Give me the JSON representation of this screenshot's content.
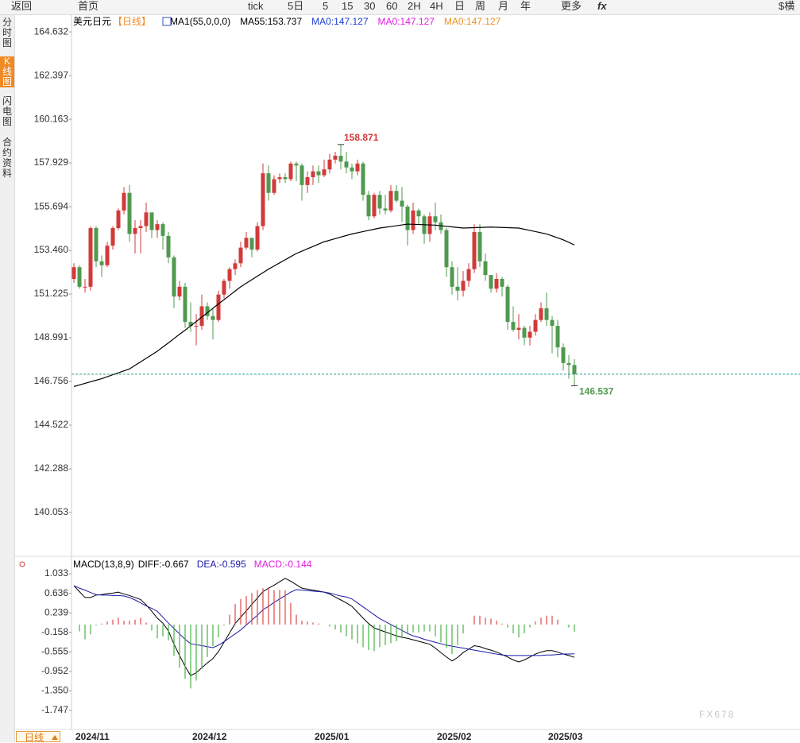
{
  "toolbar": [
    "返回",
    "首页",
    "tick",
    "5日",
    "5",
    "15",
    "30",
    "60",
    "2H",
    "4H",
    "日",
    "周",
    "月",
    "年",
    "更多",
    "fx",
    "$横"
  ],
  "sidebar": [
    "分时图",
    "K线图",
    "闪电图",
    "合约资料"
  ],
  "period_selector": "日线",
  "watermark": "FX678",
  "chart_data": [
    {
      "type": "candlestick",
      "symbol": "美元日元",
      "period": "【日线】",
      "indicator_labels": [
        {
          "text": "MA1(55,0,0,0)",
          "color": "#000000"
        },
        {
          "text": "MA55:153.737",
          "color": "#000000"
        },
        {
          "text": "MA0:147.127",
          "color": "#1a3fd0"
        },
        {
          "text": "MA0:147.127",
          "color": "#e020e0"
        },
        {
          "text": "MA0:147.127",
          "color": "#f09020"
        }
      ],
      "categories": [
        "2024/11",
        null,
        null,
        null,
        null,
        null,
        null,
        null,
        null,
        null,
        null,
        null,
        null,
        null,
        null,
        null,
        null,
        null,
        null,
        null,
        null,
        "2024/12",
        null,
        null,
        null,
        null,
        null,
        null,
        null,
        null,
        null,
        null,
        null,
        null,
        null,
        null,
        null,
        null,
        null,
        null,
        null,
        null,
        null,
        "2025/01",
        null,
        null,
        null,
        null,
        null,
        null,
        null,
        null,
        null,
        null,
        null,
        null,
        null,
        null,
        null,
        null,
        null,
        null,
        null,
        null,
        null,
        "2025/02",
        null,
        null,
        null,
        null,
        null,
        null,
        null,
        null,
        null,
        null,
        null,
        null,
        null,
        null,
        null,
        null,
        null,
        null,
        null,
        "2025/03",
        null,
        null,
        null,
        null,
        null
      ],
      "open": [
        152.0,
        152.6,
        151.6,
        151.6,
        154.6,
        152.9,
        152.7,
        153.7,
        154.6,
        155.5,
        156.4,
        154.3,
        154.6,
        154.7,
        155.4,
        154.5,
        154.8,
        154.2,
        153.1,
        151.1,
        151.6,
        149.8,
        149.6,
        149.6,
        150.6,
        150.1,
        149.9,
        151.2,
        151.9,
        152.5,
        152.8,
        153.6,
        154.1,
        153.5,
        154.7,
        157.4,
        156.4,
        157.1,
        157.2,
        157.1,
        157.9,
        157.8,
        156.8,
        157.2,
        157.5,
        157.3,
        157.6,
        158.1,
        158.3,
        158.0,
        157.7,
        157.5,
        157.9,
        156.3,
        155.2,
        156.3,
        155.6,
        155.5,
        156.5,
        156.0,
        155.7,
        154.5,
        155.5,
        155.2,
        154.3,
        155.2,
        154.9,
        154.5,
        152.6,
        151.6,
        151.4,
        151.9,
        152.5,
        154.4,
        152.9,
        152.2,
        151.5,
        152.0,
        151.6,
        149.8,
        149.4,
        149.5,
        149.0,
        149.3,
        149.9,
        150.5,
        149.9,
        149.6,
        148.5,
        147.7,
        147.6
      ],
      "high": [
        152.8,
        152.7,
        152.0,
        154.7,
        154.7,
        153.2,
        153.9,
        154.7,
        155.6,
        156.7,
        156.8,
        155.0,
        155.0,
        155.9,
        155.4,
        155.0,
        154.9,
        154.4,
        153.2,
        151.9,
        151.8,
        150.8,
        150.2,
        151.2,
        150.8,
        150.5,
        151.4,
        152.0,
        152.6,
        153.0,
        153.9,
        154.4,
        154.1,
        154.9,
        157.9,
        157.8,
        157.3,
        157.4,
        157.4,
        158.0,
        158.0,
        157.9,
        157.5,
        157.8,
        157.8,
        158.1,
        158.4,
        158.5,
        158.871,
        158.5,
        157.9,
        158.1,
        158.0,
        156.5,
        156.4,
        156.5,
        156.3,
        156.8,
        156.8,
        156.7,
        155.8,
        155.9,
        155.6,
        155.3,
        155.4,
        155.9,
        155.3,
        154.6,
        152.9,
        152.6,
        152.4,
        152.8,
        154.8,
        154.8,
        153.3,
        152.2,
        152.3,
        152.1,
        151.7,
        150.6,
        150.2,
        149.6,
        149.6,
        150.2,
        150.8,
        151.3,
        150.1,
        149.9,
        148.7,
        148.1,
        147.9
      ],
      "low": [
        151.8,
        151.5,
        151.3,
        151.4,
        152.6,
        152.1,
        152.6,
        153.5,
        154.5,
        155.3,
        153.9,
        153.3,
        153.3,
        154.4,
        154.1,
        154.1,
        153.5,
        152.8,
        150.5,
        150.9,
        149.5,
        149.3,
        148.6,
        149.4,
        149.9,
        148.9,
        149.8,
        151.0,
        151.5,
        152.2,
        152.6,
        153.5,
        153.1,
        153.4,
        154.5,
        156.0,
        156.3,
        156.9,
        156.9,
        157.0,
        157.0,
        156.0,
        156.4,
        156.8,
        156.9,
        157.2,
        157.4,
        157.9,
        157.6,
        157.4,
        157.1,
        157.3,
        156.0,
        155.0,
        155.1,
        155.3,
        155.3,
        155.4,
        155.9,
        154.9,
        153.7,
        154.3,
        154.8,
        153.8,
        153.9,
        154.5,
        154.3,
        152.1,
        151.2,
        150.9,
        151.1,
        151.6,
        152.3,
        152.6,
        151.9,
        151.3,
        151.3,
        151.1,
        149.4,
        149.3,
        148.9,
        148.6,
        148.6,
        149.1,
        149.8,
        149.6,
        148.2,
        148.0,
        147.3,
        146.9,
        146.537
      ],
      "close": [
        152.6,
        151.6,
        151.6,
        154.6,
        152.9,
        152.7,
        153.7,
        154.6,
        155.5,
        156.4,
        154.3,
        154.6,
        154.7,
        155.4,
        154.5,
        154.8,
        154.2,
        153.1,
        151.1,
        151.6,
        149.8,
        149.6,
        149.6,
        150.6,
        150.1,
        149.9,
        151.2,
        151.9,
        152.5,
        152.8,
        153.6,
        154.1,
        153.5,
        154.7,
        157.4,
        156.4,
        157.1,
        157.2,
        157.1,
        157.9,
        157.8,
        156.8,
        157.2,
        157.5,
        157.3,
        157.6,
        158.1,
        158.3,
        158.0,
        157.7,
        157.5,
        157.9,
        156.3,
        155.2,
        156.3,
        155.6,
        155.5,
        156.5,
        156.0,
        155.7,
        154.5,
        155.5,
        155.2,
        154.3,
        155.2,
        154.9,
        154.5,
        152.6,
        151.6,
        151.4,
        151.9,
        152.5,
        154.4,
        152.9,
        152.2,
        151.5,
        152.0,
        151.6,
        149.8,
        149.4,
        149.5,
        149.0,
        149.3,
        149.9,
        150.5,
        149.9,
        149.6,
        148.5,
        147.7,
        147.6,
        147.127
      ],
      "ma": {
        "color": "#000000",
        "values": [
          146.5,
          146.58,
          146.66,
          146.74,
          146.82,
          146.9,
          147.0,
          147.1,
          147.2,
          147.3,
          147.4,
          147.58,
          147.76,
          147.94,
          148.12,
          148.3,
          148.52,
          148.73,
          148.95,
          149.17,
          149.38,
          149.6,
          149.82,
          150.05,
          150.27,
          150.5,
          150.72,
          150.94,
          151.16,
          151.38,
          151.6,
          151.78,
          151.96,
          152.14,
          152.32,
          152.5,
          152.66,
          152.82,
          152.98,
          153.14,
          153.3,
          153.42,
          153.54,
          153.66,
          153.78,
          153.9,
          153.98,
          154.06,
          154.14,
          154.22,
          154.3,
          154.36,
          154.42,
          154.48,
          154.54,
          154.6,
          154.64,
          154.68,
          154.72,
          154.76,
          154.8,
          154.79,
          154.78,
          154.77,
          154.76,
          154.75,
          154.72,
          154.69,
          154.66,
          154.63,
          154.6,
          154.61,
          154.62,
          154.63,
          154.64,
          154.65,
          154.64,
          154.63,
          154.62,
          154.61,
          154.6,
          154.54,
          154.48,
          154.42,
          154.36,
          154.3,
          154.2,
          154.1,
          154.0,
          153.87,
          153.737
        ]
      },
      "up_color": "#d23a3a",
      "down_color": "#4f9a4f",
      "last_line_color": "#2a9d8f",
      "high_label": 158.871,
      "low_label": 146.537,
      "ylim": [
        137.82,
        165.53
      ],
      "yticks": [
        164.632,
        162.397,
        160.163,
        157.929,
        155.694,
        {
          "value": 153.46,
          "label": "153.460"
        },
        151.225,
        148.991,
        146.756,
        144.522,
        142.288,
        140.053
      ]
    },
    {
      "type": "macd",
      "title": "MACD(13,8,9)",
      "series": [
        {
          "name": "DIFF:-0.667",
          "kind": "line",
          "color": "#000000",
          "values": [
            0.79,
            0.67,
            0.55,
            0.55,
            0.6,
            0.61,
            0.63,
            0.64,
            0.66,
            0.62,
            0.59,
            0.55,
            0.51,
            0.4,
            0.27,
            0.13,
            0.03,
            -0.13,
            -0.4,
            -0.63,
            -0.85,
            -1.04,
            -0.98,
            -0.88,
            -0.78,
            -0.69,
            -0.55,
            -0.36,
            -0.17,
            0.02,
            0.15,
            0.28,
            0.41,
            0.54,
            0.67,
            0.74,
            0.8,
            0.87,
            0.94,
            0.88,
            0.81,
            0.74,
            0.72,
            0.7,
            0.68,
            0.66,
            0.62,
            0.56,
            0.5,
            0.44,
            0.37,
            0.25,
            0.13,
            0.02,
            -0.07,
            -0.11,
            -0.15,
            -0.19,
            -0.23,
            -0.26,
            -0.28,
            -0.31,
            -0.34,
            -0.37,
            -0.4,
            -0.48,
            -0.57,
            -0.66,
            -0.74,
            -0.67,
            -0.57,
            -0.5,
            -0.43,
            -0.45,
            -0.49,
            -0.52,
            -0.56,
            -0.61,
            -0.66,
            -0.72,
            -0.76,
            -0.72,
            -0.66,
            -0.6,
            -0.56,
            -0.53,
            -0.53,
            -0.56,
            -0.6,
            -0.63,
            -0.667
          ]
        },
        {
          "name": "DEA:-0.595",
          "kind": "line",
          "color": "#1a1aa6",
          "values": [
            0.79,
            0.74,
            0.7,
            0.65,
            0.61,
            0.6,
            0.6,
            0.59,
            0.59,
            0.58,
            0.55,
            0.5,
            0.44,
            0.38,
            0.33,
            0.27,
            0.15,
            0.03,
            -0.08,
            -0.19,
            -0.3,
            -0.39,
            -0.41,
            -0.43,
            -0.45,
            -0.47,
            -0.42,
            -0.35,
            -0.27,
            -0.19,
            -0.11,
            -0.01,
            0.09,
            0.19,
            0.3,
            0.37,
            0.45,
            0.52,
            0.59,
            0.66,
            0.71,
            0.7,
            0.69,
            0.68,
            0.67,
            0.66,
            0.64,
            0.61,
            0.58,
            0.56,
            0.52,
            0.44,
            0.36,
            0.28,
            0.2,
            0.12,
            0.06,
            0.0,
            -0.06,
            -0.12,
            -0.18,
            -0.23,
            -0.26,
            -0.3,
            -0.33,
            -0.36,
            -0.39,
            -0.42,
            -0.44,
            -0.46,
            -0.48,
            -0.5,
            -0.52,
            -0.54,
            -0.56,
            -0.58,
            -0.6,
            -0.62,
            -0.63,
            -0.63,
            -0.63,
            -0.63,
            -0.63,
            -0.63,
            -0.63,
            -0.62,
            -0.62,
            -0.61,
            -0.6,
            -0.6,
            -0.595
          ]
        },
        {
          "name": "MACD:-0.144",
          "kind": "bar",
          "color": "#e020e0",
          "up_color": "#e04848",
          "down_color": "#48b048",
          "values": [
            0.0,
            -0.14,
            -0.3,
            -0.2,
            -0.02,
            0.02,
            0.06,
            0.1,
            0.14,
            0.08,
            0.08,
            0.1,
            0.14,
            0.04,
            -0.12,
            -0.28,
            -0.24,
            -0.32,
            -0.64,
            -0.88,
            -1.1,
            -1.3,
            -1.14,
            -0.9,
            -0.66,
            -0.44,
            -0.26,
            -0.02,
            0.2,
            0.42,
            0.52,
            0.58,
            0.64,
            0.7,
            0.74,
            0.74,
            0.7,
            0.7,
            0.7,
            0.44,
            0.2,
            0.08,
            0.06,
            0.04,
            0.02,
            0.0,
            -0.04,
            -0.1,
            -0.16,
            -0.24,
            -0.3,
            -0.38,
            -0.46,
            -0.52,
            -0.54,
            -0.46,
            -0.42,
            -0.38,
            -0.34,
            -0.28,
            -0.2,
            -0.16,
            -0.16,
            -0.14,
            -0.14,
            -0.24,
            -0.36,
            -0.48,
            -0.6,
            -0.42,
            -0.18,
            0.0,
            0.18,
            0.18,
            0.14,
            0.12,
            0.08,
            0.02,
            -0.06,
            -0.18,
            -0.26,
            -0.18,
            -0.06,
            0.06,
            0.14,
            0.18,
            0.18,
            0.1,
            0.0,
            -0.06,
            -0.144
          ]
        }
      ],
      "ylim": [
        -2.086,
        1.389
      ],
      "yticks": [
        1.033,
        0.636,
        0.239,
        -0.158,
        -0.555,
        -0.952,
        {
          "value": -1.35,
          "label": "-1.350"
        },
        -1.747
      ]
    }
  ]
}
